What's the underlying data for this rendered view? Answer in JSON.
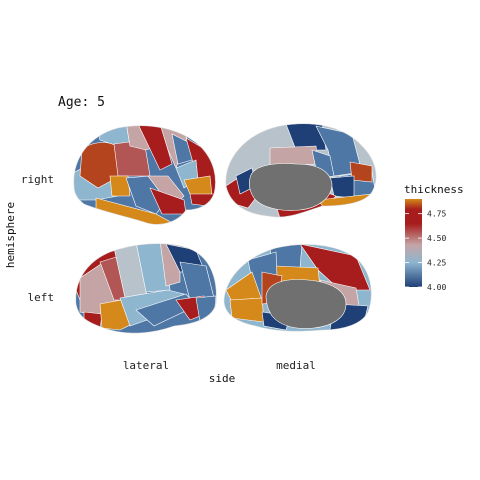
{
  "chart_data": {
    "type": "brain-surface",
    "title": "Age: 5",
    "xlabel": "side",
    "ylabel": "hemisphere",
    "x_categories": [
      "lateral",
      "medial"
    ],
    "y_categories": [
      "right",
      "left"
    ],
    "legend": {
      "title": "thickness",
      "ticks": [
        "4.75",
        "4.50",
        "4.25",
        "4.00"
      ],
      "range": [
        4.0,
        4.9
      ],
      "placement": "right"
    },
    "colors": {
      "low": "#1f3f77",
      "mid_low": "#8fb6cf",
      "mid": "#c4a4a4",
      "high": "#a71c1c",
      "top": "#d4891a",
      "medial_wall": "#707070"
    }
  }
}
